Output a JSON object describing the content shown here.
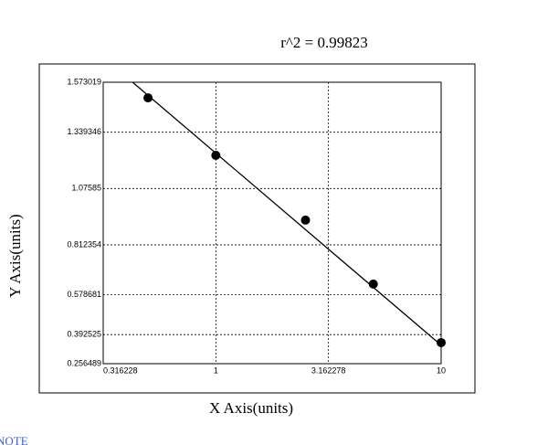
{
  "chart_data": {
    "type": "scatter",
    "title": "r^2 = 0.99823",
    "x_label": "X Axis(units)",
    "y_label": "Y Axis(units)",
    "x": [
      0.5,
      1,
      2.5,
      5,
      10
    ],
    "values": [
      1.5,
      1.231,
      0.928,
      0.629,
      0.355
    ],
    "color": "#000000",
    "fit_line": {
      "x": [
        0.427,
        10
      ],
      "y": [
        1.573019,
        0.343
      ]
    },
    "x_log": true,
    "grid": true,
    "xlim": [
      0.316228,
      10
    ],
    "xticks": [
      0.316228,
      1,
      3.162278,
      10
    ],
    "ylim": [
      0.256489,
      1.573019
    ],
    "yticks": [
      0.256489,
      0.392525,
      0.578681,
      0.812354,
      1.07585,
      1.339346,
      1.573019
    ]
  },
  "note": "NOTE"
}
